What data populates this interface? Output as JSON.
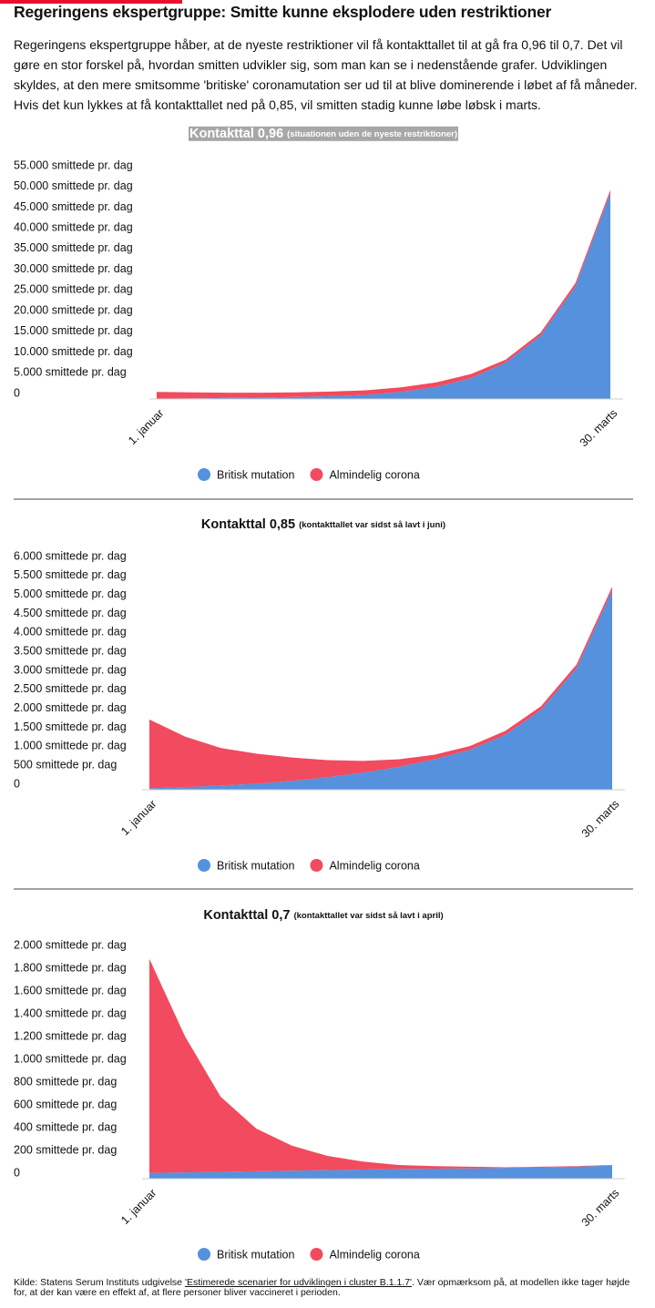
{
  "header": {
    "title": "Regeringens ekspertgruppe: Smitte kunne eksplodere uden restriktioner",
    "intro": "Regeringens ekspertgruppe håber, at de nyeste restriktioner vil få kontakttallet til at gå fra 0,96 til 0,7. Det vil gøre en stor forskel på, hvordan smitten udvikler sig, som man kan se i nedenstående grafer. Udviklingen skyldes, at den mere smitsomme 'britiske' coronamutation ser ud til at blive dominerende i løbet af få måneder. Hvis det kun lykkes at få kontakttallet ned på 0,85, vil smitten stadig kunne løbe løbsk i marts."
  },
  "chart_data": [
    {
      "type": "stacked_area",
      "title": "Kontakttal 0,96",
      "subtitle": "(situationen uden de nyeste restriktioner)",
      "categories": [
        "1. januar",
        null,
        null,
        null,
        null,
        null,
        null,
        null,
        null,
        null,
        null,
        null,
        null,
        "30. marts"
      ],
      "series": [
        {
          "name": "Britisk mutation",
          "color": "#5591dc",
          "values": [
            100,
            150,
            250,
            350,
            500,
            700,
            1000,
            1700,
            2900,
            5000,
            8800,
            15300,
            27200,
            49700
          ]
        },
        {
          "name": "Almindelig corona",
          "color": "#f24a5e",
          "values": [
            1600,
            1450,
            1250,
            1150,
            1100,
            1100,
            1100,
            1100,
            1100,
            1000,
            700,
            700,
            800,
            800
          ]
        }
      ],
      "ylim": [
        0,
        55000
      ],
      "yticks": [
        0,
        {
          "value": 5000,
          "label": "5.000 smittede pr. dag"
        },
        {
          "value": 10000,
          "label": "10.000 smittede pr. dag"
        },
        {
          "value": 15000,
          "label": "15.000 smittede pr. dag"
        },
        {
          "value": 20000,
          "label": "20.000 smittede pr. dag"
        },
        {
          "value": 25000,
          "label": "25.000 smittede pr. dag"
        },
        {
          "value": 30000,
          "label": "30.000 smittede pr. dag"
        },
        {
          "value": 35000,
          "label": "35.000 smittede pr. dag"
        },
        {
          "value": 40000,
          "label": "40.000 smittede pr. dag"
        },
        {
          "value": 45000,
          "label": "45.000 smittede pr. dag"
        },
        {
          "value": 50000,
          "label": "50.000 smittede pr. dag"
        },
        {
          "value": 55000,
          "label": "55.000 smittede pr. dag"
        }
      ],
      "grid": false,
      "legend": "bottom"
    },
    {
      "type": "stacked_area",
      "title": "Kontakttal 0,85",
      "subtitle": "(kontakttallet var sidst så lavt i juni)",
      "categories": [
        "1. januar",
        null,
        null,
        null,
        null,
        null,
        null,
        null,
        null,
        null,
        null,
        null,
        null,
        "30. marts"
      ],
      "series": [
        {
          "name": "Britisk mutation",
          "color": "#5591dc",
          "values": [
            40,
            70,
            110,
            160,
            230,
            330,
            450,
            600,
            800,
            1050,
            1450,
            2100,
            3200,
            5250
          ]
        },
        {
          "name": "Almindelig corona",
          "color": "#f24a5e",
          "values": [
            1810,
            1330,
            990,
            790,
            620,
            450,
            310,
            200,
            120,
            100,
            100,
            100,
            100,
            100
          ]
        }
      ],
      "ylim": [
        0,
        6000
      ],
      "yticks": [
        0,
        {
          "value": 500,
          "label": "500 smittede pr. dag"
        },
        {
          "value": 1000,
          "label": "1.000 smittede pr. dag"
        },
        {
          "value": 1500,
          "label": "1.500 smittede pr. dag"
        },
        {
          "value": 2000,
          "label": "2.000 smittede pr. dag"
        },
        {
          "value": 2500,
          "label": "2.500 smittede pr. dag"
        },
        {
          "value": 3000,
          "label": "3.000 smittede pr. dag"
        },
        {
          "value": 3500,
          "label": "3.500 smittede pr. dag"
        },
        {
          "value": 4000,
          "label": "4.000 smittede pr. dag"
        },
        {
          "value": 4500,
          "label": "4.500 smittede pr. dag"
        },
        {
          "value": 5000,
          "label": "5.000 smittede pr. dag"
        },
        {
          "value": 5500,
          "label": "5.500 smittede pr. dag"
        },
        {
          "value": 6000,
          "label": "6.000 smittede pr. dag"
        }
      ],
      "grid": false,
      "legend": "bottom"
    },
    {
      "type": "stacked_area",
      "title": "Kontakttal 0,7",
      "subtitle": "(kontakttallet var sidst så lavt i april)",
      "categories": [
        "1. januar",
        null,
        null,
        null,
        null,
        null,
        null,
        null,
        null,
        null,
        null,
        null,
        null,
        "30. marts"
      ],
      "series": [
        {
          "name": "Britisk mutation",
          "color": "#5591dc",
          "values": [
            50,
            55,
            60,
            65,
            70,
            75,
            80,
            85,
            88,
            90,
            95,
            100,
            105,
            115
          ]
        },
        {
          "name": "Almindelig corona",
          "color": "#f24a5e",
          "values": [
            1880,
            1195,
            660,
            375,
            220,
            125,
            70,
            35,
            22,
            15,
            5,
            5,
            5,
            5
          ]
        }
      ],
      "ylim": [
        0,
        2000
      ],
      "yticks": [
        0,
        {
          "value": 200,
          "label": "200 smittede pr. dag"
        },
        {
          "value": 400,
          "label": "400 smittede pr. dag"
        },
        {
          "value": 600,
          "label": "600 smittede pr. dag"
        },
        {
          "value": 800,
          "label": "800 smittede pr. dag"
        },
        {
          "value": 1000,
          "label": "1.000 smittede pr. dag"
        },
        {
          "value": 1200,
          "label": "1.200 smittede pr. dag"
        },
        {
          "value": 1400,
          "label": "1.400 smittede pr. dag"
        },
        {
          "value": 1600,
          "label": "1.600 smittede pr. dag"
        },
        {
          "value": 1800,
          "label": "1.800 smittede pr. dag"
        },
        {
          "value": 2000,
          "label": "2.000 smittede pr. dag"
        }
      ],
      "grid": false,
      "legend": "bottom"
    }
  ],
  "source": {
    "before": "Kilde: Statens Serum Instituts udgivelse ",
    "link": "'Estimerede scenarier for udviklingen i cluster B.1.1.7'",
    "after": ". Vær opmærksom på, at modellen ikke tager højde for, at der kan være en effekt af, at flere personer bliver vaccineret i perioden."
  }
}
